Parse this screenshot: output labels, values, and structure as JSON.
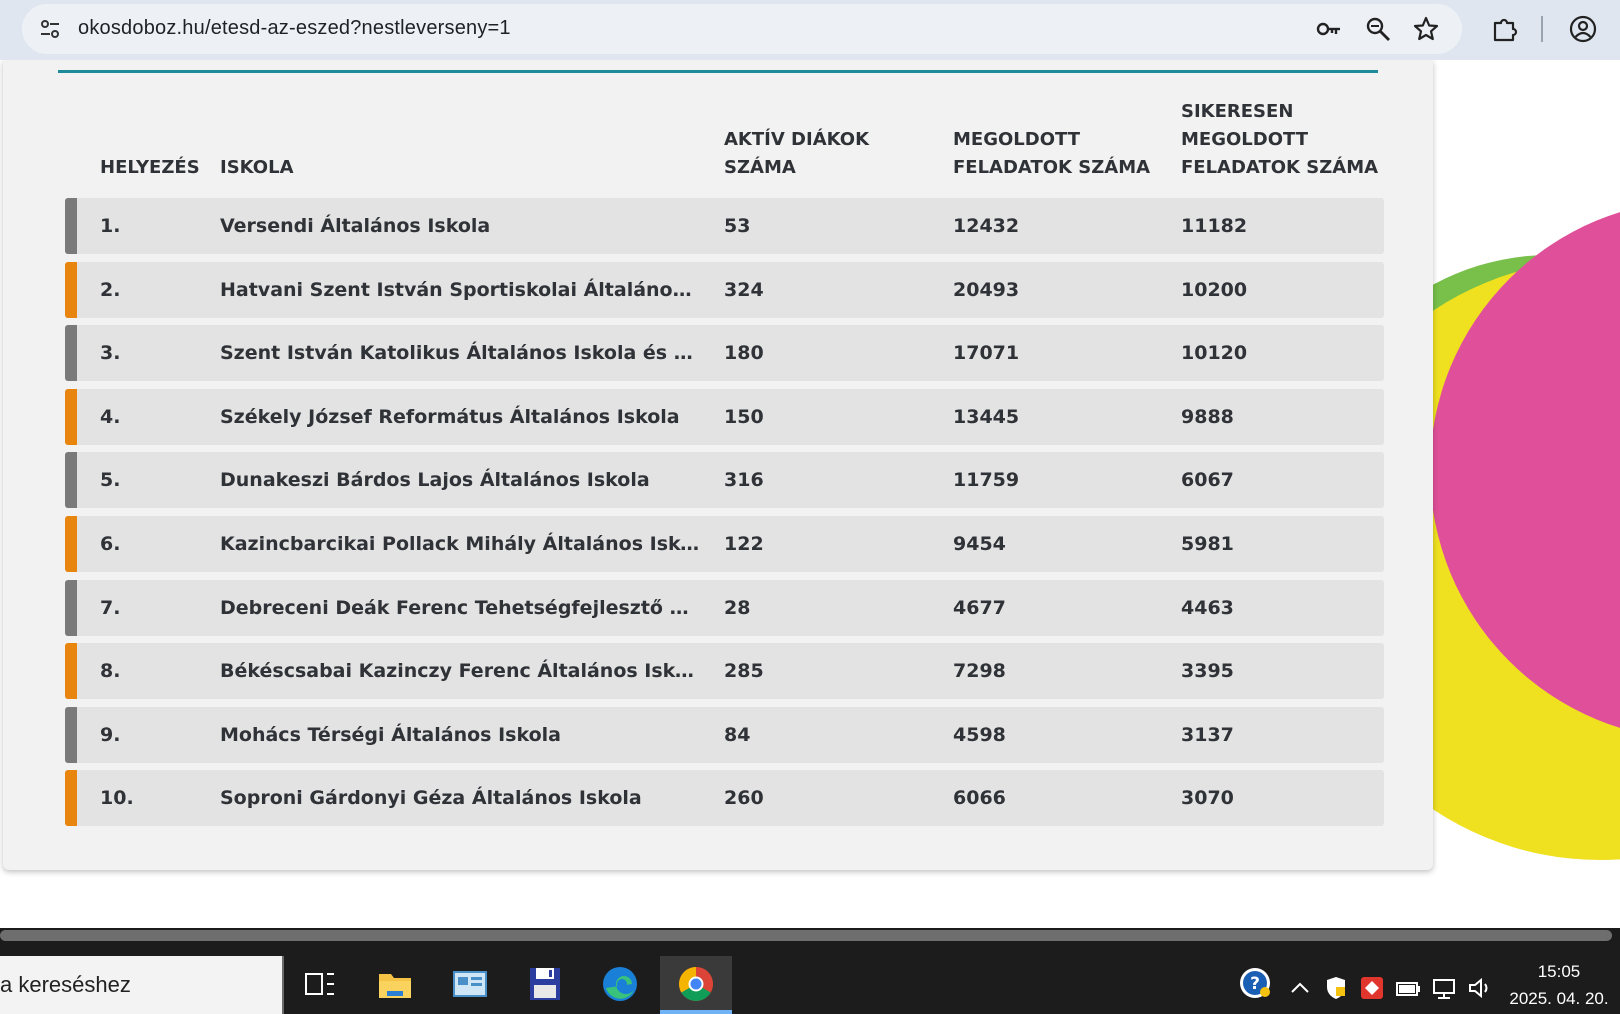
{
  "browser": {
    "url": "okosdoboz.hu/etesd-az-eszed?nestleverseny=1"
  },
  "table": {
    "headers": {
      "rank": "HELYEZÉS",
      "school": "ISKOLA",
      "active_line1": "AKTÍV DIÁKOK",
      "active_line2": "SZÁMA",
      "solved_line1": "MEGOLDOTT",
      "solved_line2": "FELADATOK SZÁMA",
      "success_line1": "SIKERESEN",
      "success_line2": "MEGOLDOTT",
      "success_line3": "FELADATOK SZÁMA"
    },
    "rows": [
      {
        "rank": "1.",
        "school": "Versendi Általános Iskola",
        "active": "53",
        "solved": "12432",
        "success": "11182"
      },
      {
        "rank": "2.",
        "school": "Hatvani Szent István Sportiskolai Általános Iskola",
        "active": "324",
        "solved": "20493",
        "success": "10200"
      },
      {
        "rank": "3.",
        "school": "Szent István Katolikus Általános Iskola és Óvoda",
        "active": "180",
        "solved": "17071",
        "success": "10120"
      },
      {
        "rank": "4.",
        "school": "Székely József Református Általános Iskola",
        "active": "150",
        "solved": "13445",
        "success": "9888"
      },
      {
        "rank": "5.",
        "school": "Dunakeszi Bárdos Lajos Általános Iskola",
        "active": "316",
        "solved": "11759",
        "success": "6067"
      },
      {
        "rank": "6.",
        "school": "Kazincbarcikai Pollack Mihály Általános Iskola",
        "active": "122",
        "solved": "9454",
        "success": "5981"
      },
      {
        "rank": "7.",
        "school": "Debreceni Deák Ferenc Tehetségfejlesztő Középiskola",
        "active": "28",
        "solved": "4677",
        "success": "4463"
      },
      {
        "rank": "8.",
        "school": "Békéscsabai Kazinczy Ferenc Általános Iskola",
        "active": "285",
        "solved": "7298",
        "success": "3395"
      },
      {
        "rank": "9.",
        "school": "Mohács Térségi Általános Iskola",
        "active": "84",
        "solved": "4598",
        "success": "3137"
      },
      {
        "rank": "10.",
        "school": "Soproni Gárdonyi Géza Általános Iskola",
        "active": "260",
        "solved": "6066",
        "success": "3070"
      }
    ],
    "bar_colors": [
      "#7a7a7a",
      "#e8850f"
    ]
  },
  "taskbar": {
    "search_text": "a kereséshez",
    "time": "15:05",
    "date": "2025. 04. 20."
  },
  "colors": {
    "accent_line": "#1f8b9a",
    "decor_pink": "#e0509a",
    "decor_yellow": "#efe020",
    "decor_green": "#78c04a"
  },
  "icons": {
    "omnibox": [
      "tune-icon",
      "key-icon",
      "zoom-icon",
      "star-icon"
    ],
    "toolbar": [
      "extensions-icon",
      "profile-icon"
    ],
    "taskbar": [
      "task-view-icon",
      "file-explorer-icon",
      "control-panel-icon",
      "save-app-icon",
      "edge-icon",
      "chrome-icon"
    ],
    "tray": [
      "help-icon",
      "chevron-up-icon",
      "security-icon",
      "app-tray-icon",
      "battery-icon",
      "network-icon",
      "volume-icon"
    ]
  }
}
